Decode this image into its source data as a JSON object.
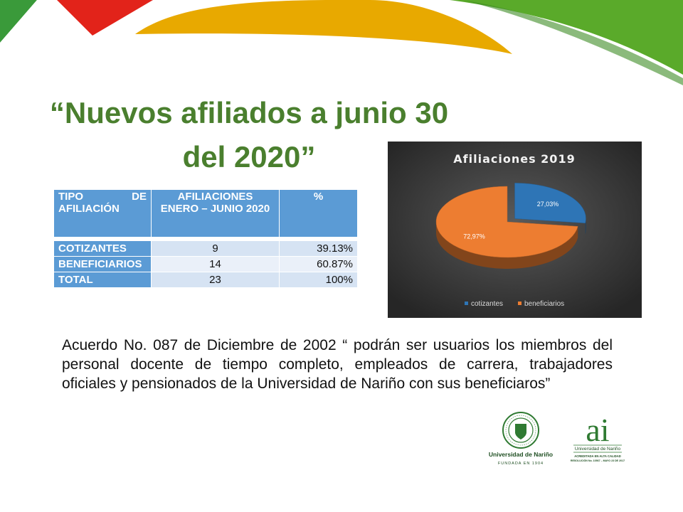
{
  "slide": {
    "title_line1": "“Nuevos afiliados a junio 30",
    "title_line2": "del 2020”"
  },
  "table": {
    "headers": [
      "TIPO DE AFILIACIÓN",
      "AFILIACIONES ENERO – JUNIO 2020",
      "%"
    ],
    "header_lines": {
      "col1_line1": "TIPO DE",
      "col1_line2": "AFILIACIÓN",
      "col2_line1": "AFILIACIONES",
      "col2_line2": "ENERO – JUNIO 2020",
      "col3": "%"
    },
    "rows": [
      {
        "tipo": "COTIZANTES",
        "afiliaciones": "9",
        "pct": "39.13%"
      },
      {
        "tipo": "BENEFICIARIOS",
        "afiliaciones": "14",
        "pct": "60.87%"
      },
      {
        "tipo": "TOTAL",
        "afiliaciones": "23",
        "pct": "100%"
      }
    ]
  },
  "chart_data": {
    "type": "pie",
    "title": "Afiliaciones  2019",
    "categories": [
      "cotizantes",
      "beneficiarios"
    ],
    "values": [
      27.03,
      72.97
    ],
    "data_labels": [
      "27,03%",
      "72,97%"
    ],
    "colors": [
      "#2e75b6",
      "#ed7d31"
    ],
    "legend_position": "bottom",
    "background": "#404040"
  },
  "quote": {
    "text": "Acuerdo No. 087 de Diciembre de 2002 “ podrán ser usuarios los miembros del personal docente de tiempo completo, empleados de carrera, trabajadores oficiales y pensionados de la Universidad de Nariño con sus beneficiaros”"
  },
  "logos": {
    "udenar_name": "Universidad de Nariño",
    "udenar_founded": "FUNDADA EN 1904",
    "ai_mark": "ai",
    "ai_university": "Universidad de Nariño",
    "ai_line1": "ACREDITADA EN ALTA CALIDAD",
    "ai_line2": "RESOLUCIÓN No. 10567 – MAYO 23 DE 2017"
  }
}
